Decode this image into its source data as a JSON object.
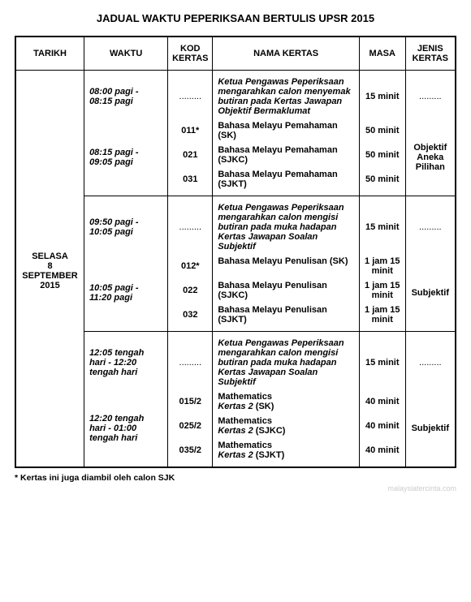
{
  "title": "JADUAL WAKTU PEPERIKSAAN BERTULIS UPSR 2015",
  "headers": {
    "tarikh": "TARIKH",
    "waktu": "WAKTU",
    "kod": "KOD KERTAS",
    "nama": "NAMA KERTAS",
    "masa": "MASA",
    "jenis": "JENIS KERTAS"
  },
  "tarikh": "SELASA\n8\nSEPTEMBER\n2015",
  "blocks": [
    {
      "prep": {
        "waktu": "08:00 pagi - 08:15 pagi",
        "kod": ".........",
        "nama": "Ketua Pengawas Peperiksaan mengarahkan calon menyemak butiran pada Kertas Jawapan Objektif Bermaklumat",
        "masa": "15 minit",
        "jenis": "........."
      },
      "exam_waktu": "08:15 pagi - 09:05 pagi",
      "jenis": "Objektif Aneka Pilihan",
      "papers": [
        {
          "kod": "011*",
          "nama": "Bahasa Melayu Pemahaman (SK)",
          "masa": "50 minit"
        },
        {
          "kod": "021",
          "nama": "Bahasa Melayu Pemahaman (SJKC)",
          "masa": "50 minit"
        },
        {
          "kod": "031",
          "nama": "Bahasa Melayu Pemahaman (SJKT)",
          "masa": "50 minit"
        }
      ]
    },
    {
      "prep": {
        "waktu": "09:50 pagi - 10:05 pagi",
        "kod": ".........",
        "nama": "Ketua Pengawas Peperiksaan mengarahkan calon mengisi butiran pada muka hadapan Kertas Jawapan Soalan Subjektif",
        "masa": "15 minit",
        "jenis": "........."
      },
      "exam_waktu": "10:05 pagi - 11:20 pagi",
      "jenis": "Subjektif",
      "papers": [
        {
          "kod": "012*",
          "nama": "Bahasa Melayu Penulisan (SK)",
          "masa": "1 jam 15 minit"
        },
        {
          "kod": "022",
          "nama": "Bahasa Melayu Penulisan (SJKC)",
          "masa": "1 jam 15 minit"
        },
        {
          "kod": "032",
          "nama": "Bahasa Melayu Penulisan (SJKT)",
          "masa": "1 jam 15 minit"
        }
      ]
    },
    {
      "prep": {
        "waktu": "12:05 tengah hari - 12:20 tengah hari",
        "kod": ".........",
        "nama": "Ketua Pengawas Peperiksaan mengarahkan calon mengisi butiran pada muka hadapan Kertas Jawapan Soalan Subjektif",
        "masa": "15 minit",
        "jenis": "........."
      },
      "exam_waktu": "12:20 tengah hari - 01:00 tengah hari",
      "jenis": "Subjektif",
      "papers": [
        {
          "kod": "015/2",
          "nama_pre": "Mathematics",
          "nama_italic": "Kertas 2",
          "nama_suf": " (SK)",
          "masa": "40 minit"
        },
        {
          "kod": "025/2",
          "nama_pre": "Mathematics",
          "nama_italic": "Kertas 2",
          "nama_suf": " (SJKC)",
          "masa": "40 minit"
        },
        {
          "kod": "035/2",
          "nama_pre": "Mathematics",
          "nama_italic": "Kertas 2",
          "nama_suf": " (SJKT)",
          "masa": "40 minit"
        }
      ]
    }
  ],
  "footnote": "* Kertas ini juga diambil oleh calon SJK",
  "watermark": "malaysiatercinta.com"
}
